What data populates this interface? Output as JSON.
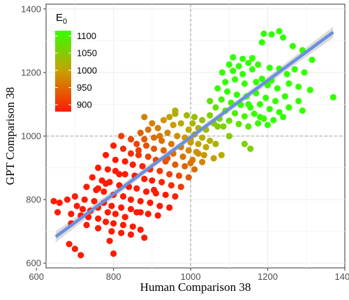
{
  "chart_data": {
    "type": "scatter",
    "title": "",
    "xlabel": "Human Comparison 38",
    "ylabel": "GPT Comparison 38",
    "xlim": [
      625,
      1400
    ],
    "ylim": [
      585,
      1415
    ],
    "x_ticks": [
      600,
      800,
      1000,
      1200,
      1400
    ],
    "y_ticks": [
      600,
      800,
      1000,
      1200,
      1400
    ],
    "x_tick_labels": [
      "600",
      "800",
      "1000",
      "1200",
      "1400"
    ],
    "y_tick_labels": [
      "600",
      "800",
      "1000",
      "1200",
      "1400"
    ],
    "reference_lines": {
      "x": 1000,
      "y": 1000,
      "style": "dashed"
    },
    "grid": true,
    "color_scale": {
      "title_main": "E",
      "title_sub": "0",
      "min": 880,
      "max": 1115,
      "low_color": "#ff1a00",
      "mid_color": "#c8a000",
      "high_color": "#33ff00",
      "ticks": [
        1100,
        1050,
        1000,
        950,
        900
      ],
      "tick_labels": [
        "1100",
        "1050",
        "1000",
        "950",
        "900"
      ],
      "placement": "top-left"
    },
    "regression_line": {
      "x_start": 650,
      "y_start": 683,
      "x_end": 1370,
      "y_end": 1327,
      "color": "#6b8fde",
      "band_color": "#bfbfbf"
    },
    "points": [
      [
        1190,
        1322
      ],
      [
        1210,
        1320
      ],
      [
        1185,
        1295
      ],
      [
        1230,
        1330
      ],
      [
        1240,
        1310
      ],
      [
        1265,
        1283
      ],
      [
        1290,
        1270
      ],
      [
        1315,
        1240
      ],
      [
        1370,
        1122
      ],
      [
        1110,
        1248
      ],
      [
        1135,
        1243
      ],
      [
        1160,
        1245
      ],
      [
        1100,
        1225
      ],
      [
        1125,
        1220
      ],
      [
        1150,
        1230
      ],
      [
        1175,
        1225
      ],
      [
        1205,
        1215
      ],
      [
        1230,
        1212
      ],
      [
        1082,
        1200
      ],
      [
        1110,
        1205
      ],
      [
        1135,
        1195
      ],
      [
        1160,
        1210
      ],
      [
        1185,
        1180
      ],
      [
        1210,
        1175
      ],
      [
        1250,
        1195
      ],
      [
        1270,
        1210
      ],
      [
        1295,
        1200
      ],
      [
        1090,
        1170
      ],
      [
        1115,
        1178
      ],
      [
        1140,
        1165
      ],
      [
        1170,
        1170
      ],
      [
        1200,
        1160
      ],
      [
        1225,
        1150
      ],
      [
        1255,
        1165
      ],
      [
        1280,
        1155
      ],
      [
        1310,
        1145
      ],
      [
        1070,
        1150
      ],
      [
        1095,
        1140
      ],
      [
        1120,
        1130
      ],
      [
        1145,
        1125
      ],
      [
        1170,
        1135
      ],
      [
        1195,
        1120
      ],
      [
        1220,
        1110
      ],
      [
        1245,
        1125
      ],
      [
        1280,
        1110
      ],
      [
        1080,
        1115
      ],
      [
        1105,
        1105
      ],
      [
        1130,
        1098
      ],
      [
        1155,
        1090
      ],
      [
        1180,
        1100
      ],
      [
        1205,
        1085
      ],
      [
        1230,
        1075
      ],
      [
        1255,
        1090
      ],
      [
        1290,
        1080
      ],
      [
        1065,
        1090
      ],
      [
        1090,
        1080
      ],
      [
        1115,
        1072
      ],
      [
        1140,
        1062
      ],
      [
        1165,
        1070
      ],
      [
        1190,
        1055
      ],
      [
        1215,
        1050
      ],
      [
        1240,
        1060
      ],
      [
        1175,
        1040
      ],
      [
        1050,
        1065
      ],
      [
        1075,
        1055
      ],
      [
        1100,
        1048
      ],
      [
        1125,
        1038
      ],
      [
        1150,
        1030
      ],
      [
        1200,
        1035
      ],
      [
        1070,
        1030
      ],
      [
        1140,
        975
      ],
      [
        1155,
        960
      ],
      [
        1010,
        1060
      ],
      [
        1030,
        1050
      ],
      [
        1060,
        1040
      ],
      [
        1085,
        1030
      ],
      [
        1040,
        1020
      ],
      [
        1005,
        1040
      ],
      [
        1020,
        1025
      ],
      [
        990,
        1065
      ],
      [
        960,
        1070
      ],
      [
        945,
        1060
      ],
      [
        930,
        1050
      ],
      [
        955,
        1035
      ],
      [
        975,
        1040
      ],
      [
        995,
        1020
      ],
      [
        1010,
        1005
      ],
      [
        1030,
        995
      ],
      [
        1050,
        985
      ],
      [
        1065,
        975
      ],
      [
        900,
        1040
      ],
      [
        890,
        1020
      ],
      [
        915,
        1025
      ],
      [
        940,
        1010
      ],
      [
        965,
        1000
      ],
      [
        985,
        995
      ],
      [
        1000,
        980
      ],
      [
        1020,
        975
      ],
      [
        1040,
        965
      ],
      [
        870,
        1010
      ],
      [
        880,
        990
      ],
      [
        905,
        995
      ],
      [
        925,
        985
      ],
      [
        950,
        975
      ],
      [
        975,
        965
      ],
      [
        995,
        955
      ],
      [
        1015,
        950
      ],
      [
        1035,
        940
      ],
      [
        1060,
        930
      ],
      [
        820,
        1000
      ],
      [
        845,
        990
      ],
      [
        860,
        975
      ],
      [
        885,
        970
      ],
      [
        905,
        960
      ],
      [
        930,
        955
      ],
      [
        955,
        945
      ],
      [
        980,
        935
      ],
      [
        1005,
        925
      ],
      [
        1030,
        918
      ],
      [
        800,
        970
      ],
      [
        825,
        960
      ],
      [
        845,
        945
      ],
      [
        865,
        940
      ],
      [
        890,
        935
      ],
      [
        910,
        925
      ],
      [
        935,
        920
      ],
      [
        960,
        910
      ],
      [
        985,
        905
      ],
      [
        1010,
        895
      ],
      [
        780,
        940
      ],
      [
        805,
        925
      ],
      [
        830,
        920
      ],
      [
        850,
        910
      ],
      [
        875,
        905
      ],
      [
        895,
        895
      ],
      [
        920,
        890
      ],
      [
        945,
        880
      ],
      [
        970,
        875
      ],
      [
        995,
        870
      ],
      [
        760,
        900
      ],
      [
        785,
        895
      ],
      [
        805,
        890
      ],
      [
        830,
        880
      ],
      [
        855,
        875
      ],
      [
        880,
        865
      ],
      [
        900,
        860
      ],
      [
        925,
        855
      ],
      [
        950,
        845
      ],
      [
        975,
        840
      ],
      [
        745,
        870
      ],
      [
        770,
        860
      ],
      [
        790,
        855
      ],
      [
        815,
        845
      ],
      [
        840,
        840
      ],
      [
        860,
        835
      ],
      [
        885,
        825
      ],
      [
        910,
        820
      ],
      [
        935,
        815
      ],
      [
        960,
        810
      ],
      [
        730,
        840
      ],
      [
        755,
        830
      ],
      [
        775,
        825
      ],
      [
        800,
        815
      ],
      [
        825,
        810
      ],
      [
        845,
        800
      ],
      [
        870,
        795
      ],
      [
        895,
        790
      ],
      [
        920,
        780
      ],
      [
        945,
        775
      ],
      [
        700,
        810
      ],
      [
        725,
        800
      ],
      [
        750,
        795
      ],
      [
        775,
        790
      ],
      [
        795,
        780
      ],
      [
        820,
        775
      ],
      [
        845,
        770
      ],
      [
        870,
        760
      ],
      [
        890,
        755
      ],
      [
        915,
        750
      ],
      [
        645,
        795
      ],
      [
        660,
        790
      ],
      [
        680,
        800
      ],
      [
        705,
        780
      ],
      [
        720,
        770
      ],
      [
        740,
        765
      ],
      [
        760,
        775
      ],
      [
        785,
        760
      ],
      [
        805,
        755
      ],
      [
        830,
        745
      ],
      [
        655,
        760
      ],
      [
        690,
        755
      ],
      [
        715,
        750
      ],
      [
        735,
        745
      ],
      [
        760,
        740
      ],
      [
        780,
        730
      ],
      [
        800,
        725
      ],
      [
        825,
        720
      ],
      [
        850,
        715
      ],
      [
        870,
        705
      ],
      [
        690,
        725
      ],
      [
        730,
        720
      ],
      [
        760,
        710
      ],
      [
        795,
        700
      ],
      [
        820,
        695
      ],
      [
        845,
        690
      ],
      [
        880,
        680
      ],
      [
        790,
        670
      ],
      [
        800,
        630
      ],
      [
        685,
        660
      ],
      [
        715,
        625
      ],
      [
        700,
        645
      ],
      [
        760,
        835
      ],
      [
        780,
        850
      ],
      [
        860,
        760
      ],
      [
        920,
        1000
      ],
      [
        880,
        1060
      ],
      [
        960,
        1080
      ],
      [
        1000,
        990
      ],
      [
        1080,
        940
      ],
      [
        1150,
        1100
      ],
      [
        1180,
        1060
      ],
      [
        1100,
        1000
      ],
      [
        1050,
        1110
      ],
      [
        1020,
        945
      ],
      [
        940,
        930
      ],
      [
        865,
        955
      ],
      [
        815,
        880
      ],
      [
        905,
        830
      ],
      [
        1000,
        915
      ]
    ]
  }
}
